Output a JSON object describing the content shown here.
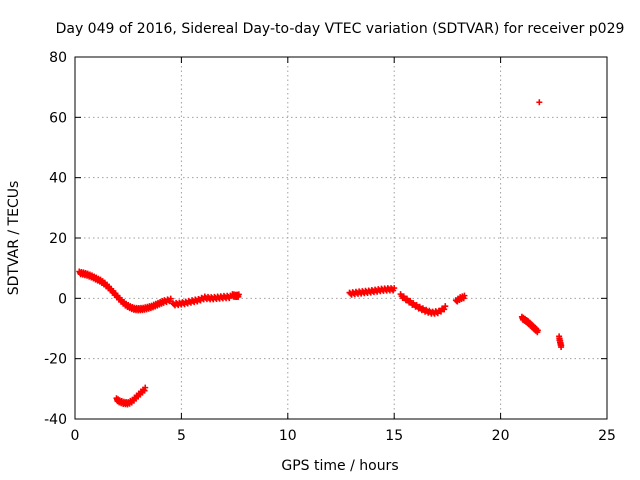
{
  "chart_data": {
    "type": "scatter",
    "title": "Day 049 of 2016, Sidereal Day-to-day VTEC variation (SDTVAR) for receiver p029",
    "xlabel": "GPS time / hours",
    "ylabel": "SDTVAR / TECUs",
    "xlim": [
      0,
      25
    ],
    "ylim": [
      -40,
      80
    ],
    "xticks": [
      "0",
      "5",
      "10",
      "15",
      "20",
      "25"
    ],
    "yticks": [
      "-40",
      "-20",
      "0",
      "20",
      "40",
      "60",
      "80"
    ],
    "grid": true,
    "marker": "+",
    "point_color": "#ff0000",
    "series": [
      {
        "name": "p029",
        "segments": [
          {
            "x": [
              0.2,
              0.4,
              0.6,
              0.8,
              1.0,
              1.2,
              1.4,
              1.6,
              1.8,
              2.0,
              2.2,
              2.4,
              2.6,
              2.8,
              3.0,
              3.2,
              3.4,
              3.6,
              3.8,
              4.0,
              4.2,
              4.5
            ],
            "y": [
              8.5,
              8.2,
              7.8,
              7.2,
              6.5,
              5.8,
              4.8,
              3.5,
              2.0,
              0.5,
              -1.0,
              -2.2,
              -3.0,
              -3.5,
              -3.6,
              -3.5,
              -3.2,
              -2.8,
              -2.2,
              -1.6,
              -1.0,
              -0.5
            ]
          },
          {
            "x": [
              4.6,
              4.9,
              5.2,
              5.5,
              5.8,
              6.1,
              6.4,
              6.7,
              7.0,
              7.3
            ],
            "y": [
              -2.0,
              -1.8,
              -1.5,
              -1.0,
              -0.6,
              0.2,
              0.0,
              0.2,
              0.4,
              0.5
            ]
          },
          {
            "x": [
              7.4,
              7.55,
              7.7
            ],
            "y": [
              1.0,
              0.8,
              0.9
            ]
          },
          {
            "x": [
              1.95,
              2.1,
              2.3,
              2.5,
              2.7,
              2.9,
              3.1,
              3.3
            ],
            "y": [
              -33.5,
              -34.2,
              -34.7,
              -34.8,
              -34.0,
              -32.6,
              -31.3,
              -30.0
            ]
          },
          {
            "x": [
              12.9,
              13.2,
              13.5,
              13.8,
              14.1,
              14.4,
              14.7,
              15.0
            ],
            "y": [
              1.5,
              1.8,
              2.0,
              2.2,
              2.5,
              2.8,
              3.0,
              3.0
            ]
          },
          {
            "x": [
              15.3,
              15.6,
              15.9,
              16.2,
              16.5,
              16.8,
              17.1,
              17.4
            ],
            "y": [
              1.0,
              -0.5,
              -2.0,
              -3.2,
              -4.2,
              -4.8,
              -4.5,
              -3.0
            ]
          },
          {
            "x": [
              17.9,
              18.1,
              18.3
            ],
            "y": [
              -1.0,
              0.0,
              0.5
            ]
          },
          {
            "x": [
              21.0,
              21.15,
              21.3,
              21.45,
              21.6,
              21.75
            ],
            "y": [
              -6.5,
              -7.2,
              -8.0,
              -9.0,
              -10.0,
              -11.0
            ]
          },
          {
            "x": [
              21.82
            ],
            "y": [
              65.0
            ]
          },
          {
            "x": [
              22.75,
              22.8,
              22.85
            ],
            "y": [
              -13.0,
              -14.5,
              -16.0
            ]
          }
        ]
      }
    ]
  }
}
